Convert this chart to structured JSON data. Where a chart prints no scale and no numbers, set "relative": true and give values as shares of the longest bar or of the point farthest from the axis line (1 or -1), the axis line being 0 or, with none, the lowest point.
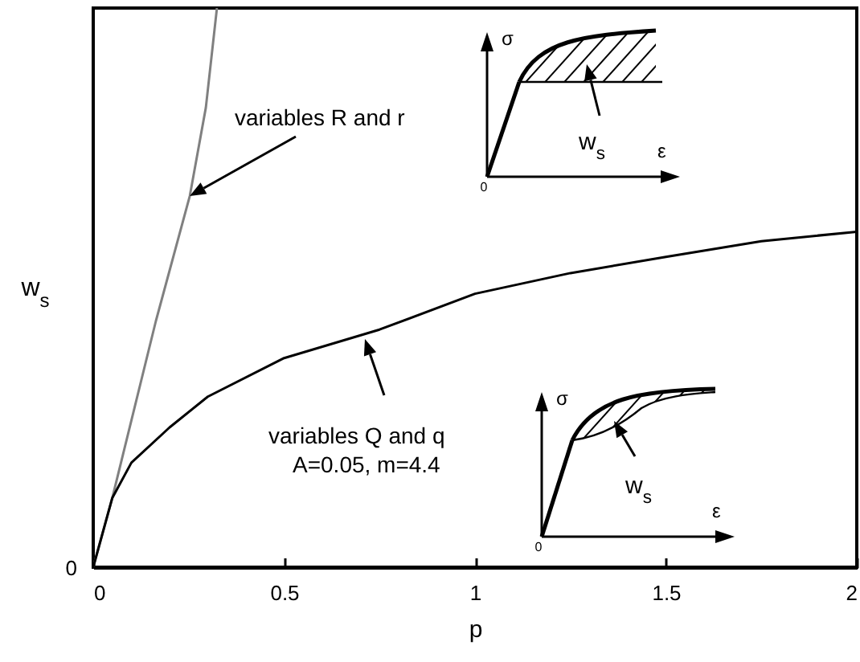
{
  "chart_data": {
    "type": "line",
    "relative": true,
    "xlabel": "p",
    "ylabel": "w$_{s}$",
    "xlim": [
      0,
      2
    ],
    "xticks": [
      0,
      0.5,
      1,
      1.5,
      2
    ],
    "grid": false,
    "marker": "none",
    "line_style": "solid",
    "series": [
      {
        "color": "#808080",
        "x": [
          0,
          0.05,
          0.164,
          0.253,
          0.295,
          0.324
        ],
        "values": [
          0,
          0.124,
          0.44,
          0.664,
          0.822,
          1.0
        ]
      },
      {
        "color": "#000000",
        "x": [
          0,
          0.05,
          0.1,
          0.2,
          0.3,
          0.5,
          0.75,
          1.0,
          1.25,
          1.5,
          1.75,
          2.0
        ],
        "values": [
          0,
          0.124,
          0.187,
          0.25,
          0.305,
          0.374,
          0.425,
          0.489,
          0.526,
          0.555,
          0.583,
          0.6
        ]
      }
    ],
    "annotations": [
      "variables R and r",
      "variables Q and q",
      "A=0.05, m=4.4",
      "0",
      "σ",
      "ε",
      "0",
      "w$_{s}$",
      "σ",
      "ε",
      "0",
      "w$_{s}$"
    ]
  }
}
